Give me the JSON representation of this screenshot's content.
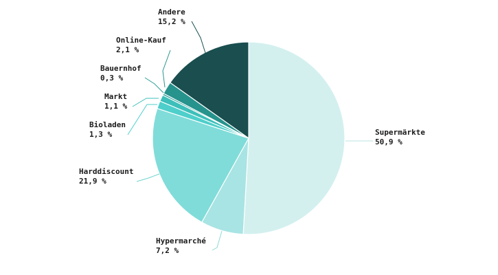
{
  "chart_data": {
    "type": "pie",
    "title": "",
    "slices": [
      {
        "label": "Supermärkte",
        "value_text": "50,9 %",
        "value": 50.9,
        "color": "#d3f0ef",
        "leader": "#b9e3e0"
      },
      {
        "label": "Hypermarché",
        "value_text": "7,2 %",
        "value": 7.2,
        "color": "#a8e4e3",
        "leader": "#8fdad7"
      },
      {
        "label": "Harddiscount",
        "value_text": "21,9 %",
        "value": 21.9,
        "color": "#80dcd9",
        "leader": "#6fd3cf"
      },
      {
        "label": "Bioladen",
        "value_text": "1,3 %",
        "value": 1.3,
        "color": "#4ecfcb",
        "leader": "#4ecfcb"
      },
      {
        "label": "Markt",
        "value_text": "1,1 %",
        "value": 1.1,
        "color": "#3dbfba",
        "leader": "#3dbfba"
      },
      {
        "label": "Bauernhof",
        "value_text": "0,3 %",
        "value": 0.3,
        "color": "#2a9d96",
        "leader": "#2a9d96"
      },
      {
        "label": "Online-Kauf",
        "value_text": "2,1 %",
        "value": 2.1,
        "color": "#27938d",
        "leader": "#27938d"
      },
      {
        "label": "Andere",
        "value_text": "15,2 %",
        "value": 15.2,
        "color": "#1a4e4f",
        "leader": "#1a4e4f"
      }
    ],
    "start_angle": "12 o'clock",
    "direction": "clockwise",
    "legend": "none (direct labels)"
  }
}
